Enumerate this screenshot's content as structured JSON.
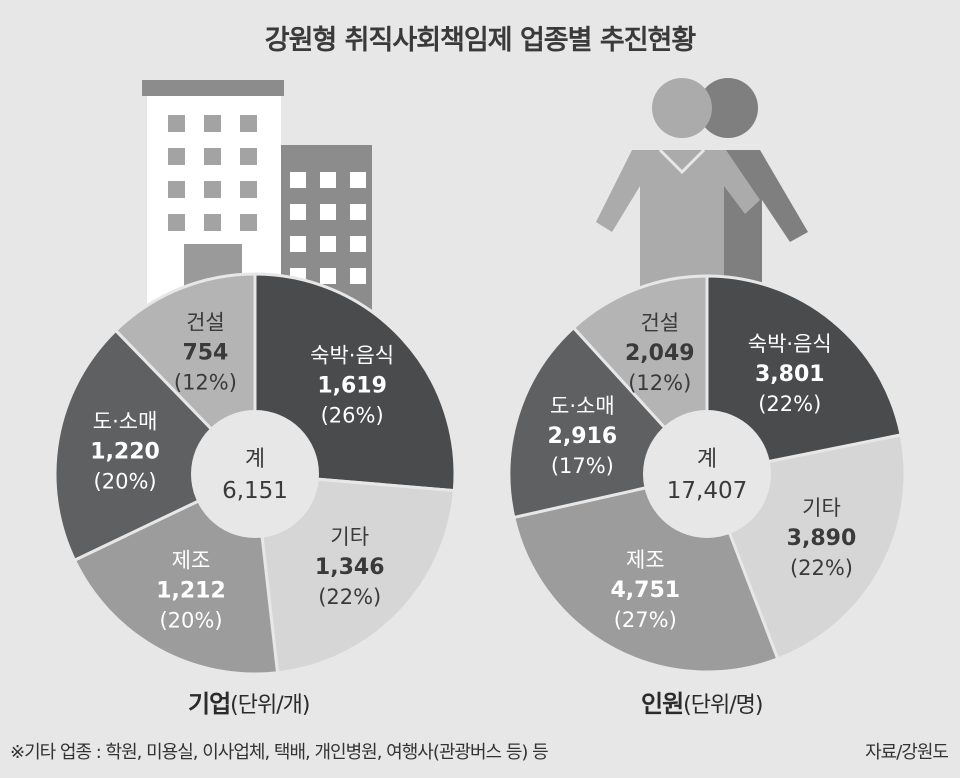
{
  "title": "강원형 취직사회책임제 업종별 추진현황",
  "footnote": "※기타 업종 : 학원, 미용실, 이사업체, 택배, 개인병원, 여행사(관광버스 등) 등",
  "source": "자료/강원도",
  "colors": {
    "background": "#e7e7e7",
    "숙박·음식": "#4a4b4d",
    "기타": "#d6d6d6",
    "제조": "#9c9c9c",
    "도·소매": "#5f6062",
    "건설": "#b4b4b4"
  },
  "chart_data": [
    {
      "type": "pie",
      "caption_bold": "기업",
      "caption_unit": "(단위/개)",
      "center_label": "계",
      "total": "6,151",
      "slices": [
        {
          "name": "숙박·음식",
          "value": 1619,
          "value_label": "1,619",
          "percent": "(26%)"
        },
        {
          "name": "기타",
          "value": 1346,
          "value_label": "1,346",
          "percent": "(22%)"
        },
        {
          "name": "제조",
          "value": 1212,
          "value_label": "1,212",
          "percent": "(20%)"
        },
        {
          "name": "도·소매",
          "value": 1220,
          "value_label": "1,220",
          "percent": "(20%)"
        },
        {
          "name": "건설",
          "value": 754,
          "value_label": "754",
          "percent": "(12%)"
        }
      ]
    },
    {
      "type": "pie",
      "caption_bold": "인원",
      "caption_unit": "(단위/명)",
      "center_label": "계",
      "total": "17,407",
      "slices": [
        {
          "name": "숙박·음식",
          "value": 3801,
          "value_label": "3,801",
          "percent": "(22%)"
        },
        {
          "name": "기타",
          "value": 3890,
          "value_label": "3,890",
          "percent": "(22%)"
        },
        {
          "name": "제조",
          "value": 4751,
          "value_label": "4,751",
          "percent": "(27%)"
        },
        {
          "name": "도·소매",
          "value": 2916,
          "value_label": "2,916",
          "percent": "(17%)"
        },
        {
          "name": "건설",
          "value": 2049,
          "value_label": "2,049",
          "percent": "(12%)"
        }
      ]
    }
  ]
}
